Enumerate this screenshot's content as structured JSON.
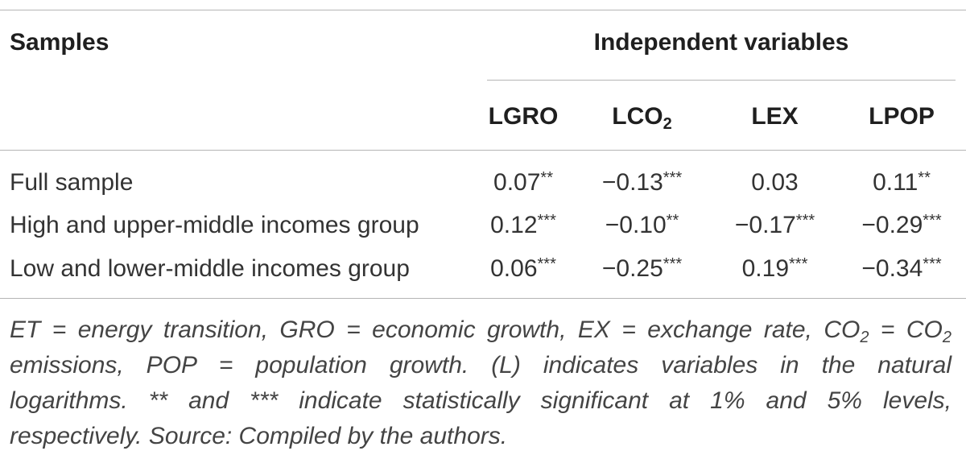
{
  "header": {
    "samples_label": "Samples",
    "group_label": "Independent variables",
    "columns": [
      {
        "base": "LGRO",
        "sub": ""
      },
      {
        "base": "LCO",
        "sub": "2"
      },
      {
        "base": "LEX",
        "sub": ""
      },
      {
        "base": "LPOP",
        "sub": ""
      }
    ]
  },
  "rows": [
    {
      "label": "Full sample",
      "cells": [
        {
          "v": "0.07",
          "s": "**"
        },
        {
          "v": "−0.13",
          "s": "***"
        },
        {
          "v": "0.03",
          "s": ""
        },
        {
          "v": "0.11",
          "s": "**"
        }
      ]
    },
    {
      "label": "High and upper-middle incomes group",
      "cells": [
        {
          "v": "0.12",
          "s": "***"
        },
        {
          "v": "−0.10",
          "s": "**"
        },
        {
          "v": "−0.17",
          "s": "***"
        },
        {
          "v": "−0.29",
          "s": "***"
        }
      ]
    },
    {
      "label": "Low and lower-middle incomes group",
      "cells": [
        {
          "v": "0.06",
          "s": "***"
        },
        {
          "v": "−0.25",
          "s": "***"
        },
        {
          "v": "0.19",
          "s": "***"
        },
        {
          "v": "−0.34",
          "s": "***"
        }
      ]
    }
  ],
  "footnote": {
    "line1_a": "ET = energy transition, GRO = economic growth, EX = exchange rate, CO",
    "line1_sub1": "2",
    "line1_b": " = CO",
    "line1_sub2": "2",
    "line2": "emissions, POP = population growth. (L) indicates variables in the natural",
    "line3": "logarithms. ** and *** indicate statistically significant at 1% and 5% levels,",
    "line4": "respectively. Source: Compiled by the authors."
  }
}
